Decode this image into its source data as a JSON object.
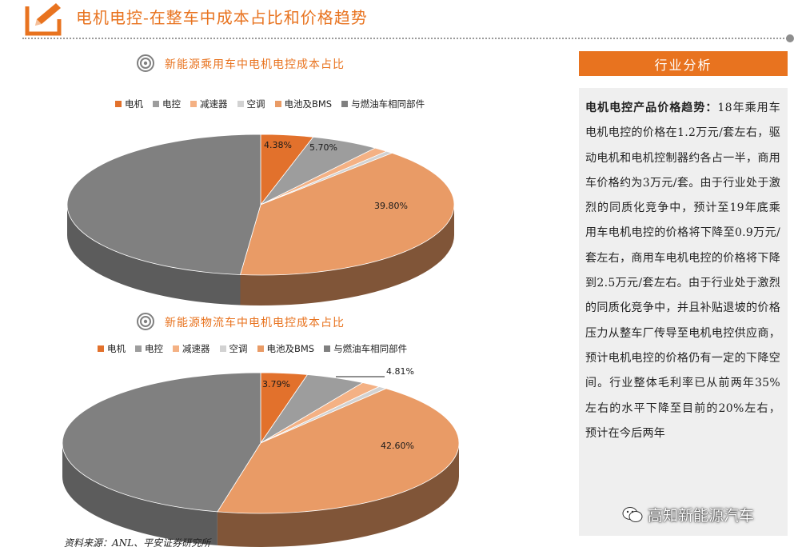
{
  "header": {
    "title": "电机电控-在整车中成本占比和价格趋势"
  },
  "colors": {
    "accent": "#e8731f",
    "motor": "#e2712c",
    "controller": "#9d9d9d",
    "reducer": "#f4b184",
    "ac": "#d2d2d2",
    "battery": "#e99b66",
    "common": "#808080"
  },
  "chart_data": [
    {
      "type": "pie",
      "title": "新能源乘用车中电机电控成本占比",
      "legend": [
        "电机",
        "电控",
        "减速器",
        "空调",
        "电池及BMS",
        "与燃油车相同部件"
      ],
      "values": [
        4.38,
        5.7,
        1.2,
        0.6,
        39.8,
        48.32
      ],
      "data_labels": [
        "4.38%",
        "5.70%",
        "",
        "",
        "39.80%",
        ""
      ]
    },
    {
      "type": "pie",
      "title": "新能源物流车中电机电控成本占比",
      "legend": [
        "电机",
        "电控",
        "减速器",
        "空调",
        "电池及BMS",
        "与燃油车相同部件"
      ],
      "values": [
        3.79,
        4.81,
        1.6,
        0.7,
        42.6,
        46.5
      ],
      "data_labels": [
        "3.79%",
        "4.81%",
        "",
        "",
        "42.60%",
        ""
      ]
    }
  ],
  "side_panel": {
    "header": "行业分析",
    "lead": "电机电控产品价格趋势：",
    "body": "18年乘用车电机电控的价格在1.2万元/套左右，驱动电机和电机控制器约各占一半，商用车价格约为3万元/套。由于行业处于激烈的同质化竞争中，预计至19年底乘用车电机电控的价格将下降至0.9万元/套左右，商用车电机电控的价格将下降到2.5万元/套左右。由于行业处于激烈的同质化竞争中，并且补贴退坡的价格压力从整车厂传导至电机电控供应商，预计电机电控的价格仍有一定的下降空间。行业整体毛利率已从前两年35%左右的水平下降至目前的20%左右，预计在今后两年"
  },
  "watermark": {
    "text": "高知新能源汽车"
  },
  "footer": {
    "source": "资料来源：ANL、平安证券研究所"
  }
}
